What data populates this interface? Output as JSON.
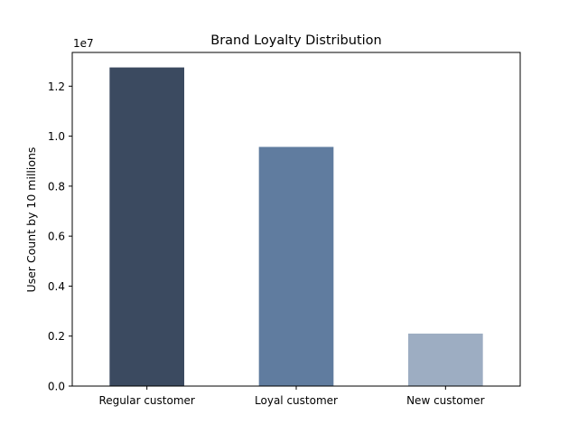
{
  "chart_data": {
    "type": "bar",
    "title": "Brand Loyalty Distribution",
    "xlabel": "",
    "ylabel": "User Count by 10 millions",
    "y_offset_label": "1e7",
    "categories": [
      "Regular customer",
      "Loyal customer",
      "New customer"
    ],
    "values": [
      12750000,
      9570000,
      2100000
    ],
    "colors": [
      "#3b4a60",
      "#607c9f",
      "#9dadc2"
    ],
    "ylim": [
      0,
      13350000
    ],
    "yticks": [
      0,
      2000000,
      4000000,
      6000000,
      8000000,
      10000000,
      12000000
    ],
    "ytick_labels": [
      "0.0",
      "0.2",
      "0.4",
      "0.6",
      "0.8",
      "1.0",
      "1.2"
    ],
    "grid": false,
    "legend": "none"
  }
}
